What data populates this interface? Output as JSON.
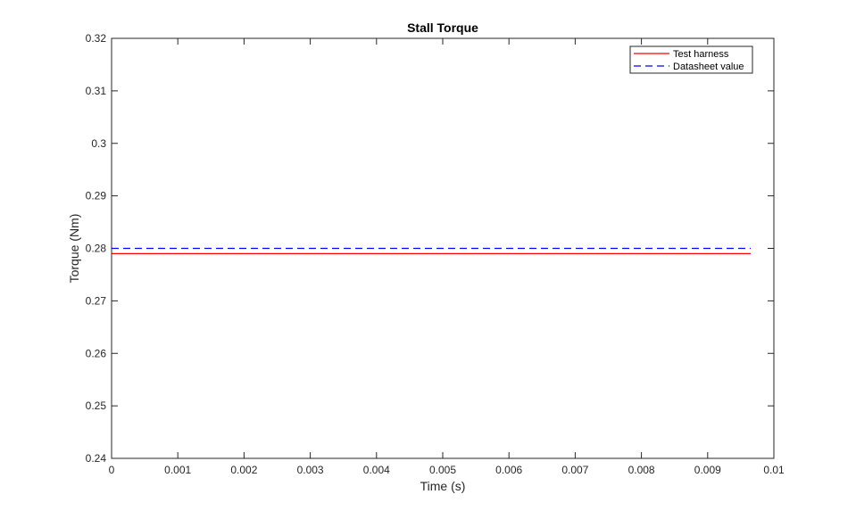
{
  "chart_data": {
    "type": "line",
    "title": "Stall Torque",
    "xlabel": "Time (s)",
    "ylabel": "Torque (Nm)",
    "xlim": [
      0,
      0.01
    ],
    "ylim": [
      0.24,
      0.32
    ],
    "xticks": [
      0,
      0.001,
      0.002,
      0.003,
      0.004,
      0.005,
      0.006,
      0.007,
      0.008,
      0.009,
      0.01
    ],
    "xtick_labels": [
      "0",
      "0.001",
      "0.002",
      "0.003",
      "0.004",
      "0.005",
      "0.006",
      "0.007",
      "0.008",
      "0.009",
      "0.01"
    ],
    "yticks": [
      0.24,
      0.25,
      0.26,
      0.27,
      0.28,
      0.29,
      0.3,
      0.31,
      0.32
    ],
    "ytick_labels": [
      "0.24",
      "0.25",
      "0.26",
      "0.27",
      "0.28",
      "0.29",
      "0.3",
      "0.31",
      "0.32"
    ],
    "grid": false,
    "legend_position": "top-right",
    "series": [
      {
        "name": "Test harness",
        "x": [
          0,
          0.00965
        ],
        "y": [
          0.279,
          0.279
        ],
        "color": "#ff0000",
        "style": "solid"
      },
      {
        "name": "Datasheet value",
        "x": [
          0,
          0.00965
        ],
        "y": [
          0.28,
          0.28
        ],
        "color": "#0000ff",
        "style": "dashed"
      }
    ]
  }
}
